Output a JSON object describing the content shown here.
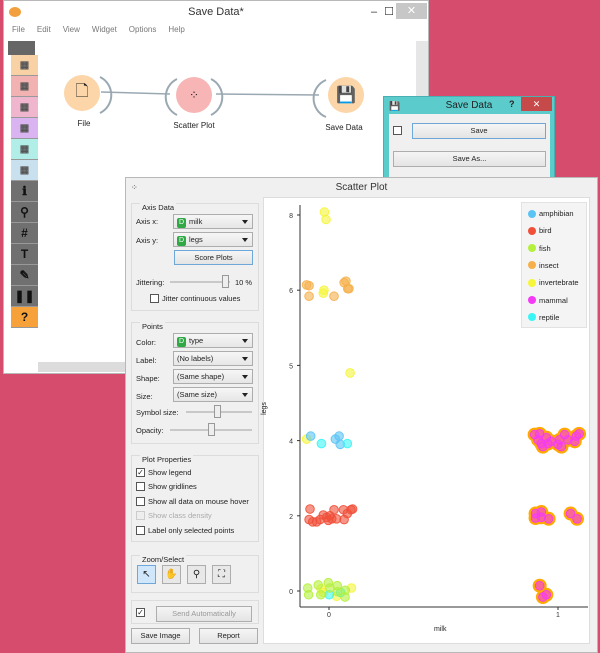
{
  "main_window": {
    "title": "Save Data*",
    "menu": [
      "File",
      "Edit",
      "View",
      "Widget",
      "Options",
      "Help"
    ],
    "toolbar": [
      {
        "icon": "table-icon",
        "color": "#f8d2a4"
      },
      {
        "icon": "scatter-icon",
        "color": "#f3b2b2"
      },
      {
        "icon": "tree-icon",
        "color": "#f0b6ce"
      },
      {
        "icon": "clusters-icon",
        "color": "#d9b4f0"
      },
      {
        "icon": "grid-icon",
        "color": "#b2eee8"
      },
      {
        "icon": "dots-icon",
        "color": "#c9e1ee"
      },
      {
        "icon": "info-icon",
        "glyph": "ℹ"
      },
      {
        "icon": "search-icon",
        "glyph": "⚲"
      },
      {
        "icon": "hash-icon",
        "glyph": "#"
      },
      {
        "icon": "text-icon",
        "glyph": "T"
      },
      {
        "icon": "pen-icon",
        "glyph": "✎"
      },
      {
        "icon": "pause-icon",
        "glyph": "❚❚"
      },
      {
        "icon": "help-icon",
        "glyph": "?"
      }
    ],
    "nodes": [
      {
        "label": "File",
        "icon": "file-icon"
      },
      {
        "label": "Scatter Plot",
        "icon": "scatter-icon"
      },
      {
        "label": "Save Data",
        "icon": "floppy-icon"
      }
    ]
  },
  "save_dialog": {
    "title": "Save Data",
    "help": "?",
    "save_label": "Save",
    "save_as_label": "Save As...",
    "checked": false
  },
  "scatter_window": {
    "title": "Scatter Plot",
    "axis_data": {
      "title": "Axis Data",
      "axis_x_label": "Axis x:",
      "axis_x": "milk",
      "axis_y_label": "Axis y:",
      "axis_y": "legs",
      "score_plots": "Score Plots",
      "jittering_label": "Jittering:",
      "jittering_value": "10 %",
      "jittering": 10,
      "jitter_continuous": "Jitter continuous values"
    },
    "points": {
      "title": "Points",
      "color_label": "Color:",
      "color": "type",
      "label_label": "Label:",
      "label": "(No labels)",
      "shape_label": "Shape:",
      "shape": "(Same shape)",
      "size_label": "Size:",
      "size": "(Same size)",
      "symbol_size_label": "Symbol size:",
      "opacity_label": "Opacity:"
    },
    "plot_properties": {
      "title": "Plot Properties",
      "show_legend": "Show legend",
      "show_gridlines": "Show gridlines",
      "show_all_data": "Show all data on mouse hover",
      "show_class_density": "Show class density",
      "label_selected": "Label only selected points"
    },
    "zoom_select": {
      "title": "Zoom/Select"
    },
    "send_automatically": "Send Automatically",
    "save_image": "Save Image",
    "report": "Report",
    "badge": "D"
  },
  "chart_data": {
    "type": "scatter",
    "xlabel": "milk",
    "ylabel": "legs",
    "x_ticks": [
      "0",
      "1"
    ],
    "y_ticks": [
      "0",
      "2",
      "4",
      "5",
      "6",
      "8"
    ],
    "grid": false,
    "legend_position": "top-right",
    "jitter_percent": 10,
    "selected_class": "mammal",
    "selection_color": "#ffaa00",
    "legend": [
      {
        "name": "amphibian",
        "color": "#5bc4f5"
      },
      {
        "name": "bird",
        "color": "#f0503a"
      },
      {
        "name": "fish",
        "color": "#b4f03c"
      },
      {
        "name": "insect",
        "color": "#f5b04b"
      },
      {
        "name": "invertebrate",
        "color": "#f5f53a"
      },
      {
        "name": "mammal",
        "color": "#f53af5"
      },
      {
        "name": "reptile",
        "color": "#3af5f5"
      }
    ],
    "series": [
      {
        "name": "invertebrate",
        "points": [
          [
            -0.02,
            8.04
          ],
          [
            -0.013,
            7.94
          ],
          [
            -0.022,
            6.0
          ],
          [
            -0.025,
            5.96
          ],
          [
            0.092,
            4.9
          ],
          [
            -0.098,
            4.02
          ],
          [
            -0.035,
            0.03
          ],
          [
            -0.025,
            -0.02
          ],
          [
            0.033,
            -0.07
          ],
          [
            0.098,
            0.04
          ]
        ]
      },
      {
        "name": "insect",
        "points": [
          [
            -0.098,
            6.07
          ],
          [
            -0.087,
            6.06
          ],
          [
            -0.087,
            5.92
          ],
          [
            0.022,
            5.92
          ],
          [
            0.066,
            6.1
          ],
          [
            0.074,
            6.12
          ],
          [
            0.082,
            6.02
          ],
          [
            0.087,
            6.02
          ]
        ]
      },
      {
        "name": "amphibian",
        "points": [
          [
            -0.08,
            4.06
          ],
          [
            0.028,
            4.02
          ],
          [
            0.044,
            4.06
          ],
          [
            0.049,
            3.95
          ]
        ]
      },
      {
        "name": "reptile",
        "points": [
          [
            -0.033,
            3.96
          ],
          [
            0.08,
            3.96
          ],
          [
            0.001,
            -0.05
          ],
          [
            0.051,
            -0.02
          ]
        ]
      },
      {
        "name": "bird",
        "points": [
          [
            -0.083,
            2.09
          ],
          [
            -0.087,
            1.95
          ],
          [
            -0.071,
            1.92
          ],
          [
            -0.054,
            1.92
          ],
          [
            -0.039,
            1.95
          ],
          [
            -0.025,
            2.01
          ],
          [
            -0.01,
            1.98
          ],
          [
            -0.003,
            1.94
          ],
          [
            0.004,
            2.0
          ],
          [
            0.012,
            1.96
          ],
          [
            0.022,
            2.08
          ],
          [
            0.033,
            1.96
          ],
          [
            0.063,
            2.08
          ],
          [
            0.066,
            1.95
          ],
          [
            0.08,
            2.03
          ],
          [
            0.096,
            2.08
          ],
          [
            0.103,
            2.09
          ]
        ]
      },
      {
        "name": "fish",
        "points": [
          [
            -0.093,
            0.04
          ],
          [
            -0.089,
            -0.05
          ],
          [
            -0.047,
            0.08
          ],
          [
            -0.036,
            -0.05
          ],
          [
            -0.003,
            0.11
          ],
          [
            0.004,
            0.04
          ],
          [
            0.036,
            0.07
          ],
          [
            0.038,
            -0.01
          ],
          [
            0.07,
            -0.08
          ],
          [
            0.071,
            0.01
          ]
        ]
      },
      {
        "name": "mammal",
        "points": [
          [
            0.898,
            4.08
          ],
          [
            0.913,
            4.01
          ],
          [
            0.92,
            4.09
          ],
          [
            0.927,
            3.96
          ],
          [
            0.934,
            3.92
          ],
          [
            0.949,
            4.04
          ],
          [
            0.956,
            3.96
          ],
          [
            0.971,
            3.99
          ],
          [
            1.0,
            3.95
          ],
          [
            1.007,
            4.01
          ],
          [
            1.015,
            3.92
          ],
          [
            1.029,
            4.08
          ],
          [
            1.044,
            4.01
          ],
          [
            1.073,
            3.99
          ],
          [
            1.08,
            4.06
          ],
          [
            1.092,
            4.09
          ],
          [
            0.902,
            2.03
          ],
          [
            0.927,
            2.05
          ],
          [
            0.902,
            1.97
          ],
          [
            0.927,
            1.98
          ],
          [
            0.959,
            1.96
          ],
          [
            1.055,
            2.03
          ],
          [
            1.083,
            1.96
          ],
          [
            0.92,
            0.07
          ],
          [
            0.934,
            -0.08
          ],
          [
            0.949,
            -0.05
          ]
        ]
      }
    ]
  }
}
